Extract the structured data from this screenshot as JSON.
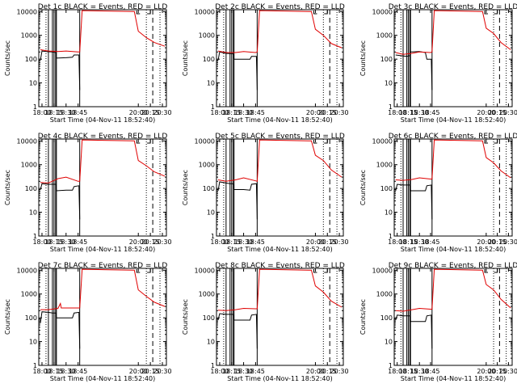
{
  "chart_data": {
    "type": "line",
    "x_unit": "UT time of day (HH:MM) on 04-Nov-11",
    "x_range": [
      "17:56",
      "20:35"
    ],
    "y_scale": "log",
    "ylim": [
      1,
      12000
    ],
    "ylabel": "Counts/sec",
    "xlabel": "Start Time (04-Nov-11 18:52:40)",
    "x_tick_labels": [
      "18:00",
      "18:15",
      "18:30",
      "18:45",
      "20:00",
      "20:15",
      "20:30"
    ],
    "y_tick_labels": [
      "1",
      "10",
      "100",
      "1000",
      "10000"
    ],
    "series_legend": {
      "events": "BLACK = Events",
      "lld": "RED = LLD"
    },
    "colors": {
      "events": "#000000",
      "lld": "#e00000"
    },
    "vlines": {
      "solid": [
        "18:08",
        "18:13",
        "18:15",
        "18:17",
        "18:18",
        "18:47"
      ],
      "dotted": [
        "18:05",
        "20:10",
        "20:27"
      ],
      "dashed": [
        "20:18"
      ]
    },
    "panels": [
      {
        "title": "Det 1c BLACK = Events, RED = LLD",
        "lld": [
          [
            "17:58",
            250
          ],
          [
            "18:08",
            220
          ],
          [
            "18:20",
            210
          ],
          [
            "18:30",
            220
          ],
          [
            "18:45",
            200
          ],
          [
            "18:47",
            200
          ],
          [
            "18:50",
            11000
          ],
          [
            "19:55",
            10000
          ],
          [
            "20:00",
            1500
          ],
          [
            "20:10",
            800
          ],
          [
            "20:20",
            500
          ],
          [
            "20:33",
            350
          ]
        ],
        "events": [
          [
            "17:58",
            90
          ],
          [
            "18:00",
            220
          ],
          [
            "18:05",
            210
          ],
          [
            "18:13",
            200
          ],
          [
            "18:17",
            190
          ],
          [
            "18:18",
            110
          ],
          [
            "18:30",
            115
          ],
          [
            "18:38",
            120
          ],
          [
            "18:40",
            150
          ],
          [
            "18:46",
            150
          ],
          [
            "18:47",
            5
          ]
        ]
      },
      {
        "title": "Det 2c BLACK = Events, RED = LLD",
        "lld": [
          [
            "17:58",
            220
          ],
          [
            "18:08",
            190
          ],
          [
            "18:20",
            190
          ],
          [
            "18:30",
            210
          ],
          [
            "18:45",
            190
          ],
          [
            "18:47",
            200
          ],
          [
            "18:50",
            11000
          ],
          [
            "19:55",
            10000
          ],
          [
            "20:00",
            1800
          ],
          [
            "20:10",
            1000
          ],
          [
            "20:20",
            450
          ],
          [
            "20:33",
            300
          ]
        ],
        "events": [
          [
            "17:58",
            90
          ],
          [
            "18:00",
            200
          ],
          [
            "18:08",
            175
          ],
          [
            "18:13",
            170
          ],
          [
            "18:17",
            170
          ],
          [
            "18:18",
            100
          ],
          [
            "18:30",
            100
          ],
          [
            "18:38",
            100
          ],
          [
            "18:40",
            130
          ],
          [
            "18:46",
            130
          ],
          [
            "18:47",
            5
          ]
        ]
      },
      {
        "title": "Det 3c BLACK = Events, RED = LLD",
        "lld": [
          [
            "17:58",
            190
          ],
          [
            "18:08",
            160
          ],
          [
            "18:20",
            175
          ],
          [
            "18:30",
            200
          ],
          [
            "18:45",
            190
          ],
          [
            "18:47",
            200
          ],
          [
            "18:50",
            11000
          ],
          [
            "19:55",
            10000
          ],
          [
            "20:00",
            2000
          ],
          [
            "20:10",
            1200
          ],
          [
            "20:20",
            500
          ],
          [
            "20:33",
            250
          ]
        ],
        "events": [
          [
            "17:58",
            150
          ],
          [
            "18:05",
            140
          ],
          [
            "18:13",
            130
          ],
          [
            "18:17",
            140
          ],
          [
            "18:18",
            200
          ],
          [
            "18:30",
            210
          ],
          [
            "18:38",
            190
          ],
          [
            "18:40",
            100
          ],
          [
            "18:46",
            100
          ],
          [
            "18:47",
            5
          ]
        ]
      },
      {
        "title": "Det 4c BLACK = Events, RED = LLD",
        "lld": [
          [
            "17:58",
            180
          ],
          [
            "18:08",
            170
          ],
          [
            "18:20",
            260
          ],
          [
            "18:30",
            300
          ],
          [
            "18:45",
            200
          ],
          [
            "18:47",
            200
          ],
          [
            "18:50",
            11000
          ],
          [
            "19:55",
            10000
          ],
          [
            "20:00",
            1500
          ],
          [
            "20:10",
            900
          ],
          [
            "20:20",
            500
          ],
          [
            "20:33",
            330
          ]
        ],
        "events": [
          [
            "17:58",
            90
          ],
          [
            "18:00",
            160
          ],
          [
            "18:08",
            150
          ],
          [
            "18:13",
            150
          ],
          [
            "18:17",
            150
          ],
          [
            "18:18",
            80
          ],
          [
            "18:30",
            85
          ],
          [
            "18:38",
            85
          ],
          [
            "18:40",
            120
          ],
          [
            "18:46",
            130
          ],
          [
            "18:47",
            5
          ]
        ]
      },
      {
        "title": "Det 5c BLACK = Events, RED = LLD",
        "lld": [
          [
            "17:58",
            230
          ],
          [
            "18:08",
            200
          ],
          [
            "18:20",
            230
          ],
          [
            "18:30",
            280
          ],
          [
            "18:45",
            210
          ],
          [
            "18:47",
            200
          ],
          [
            "18:50",
            11000
          ],
          [
            "19:55",
            10000
          ],
          [
            "20:00",
            2500
          ],
          [
            "20:10",
            1500
          ],
          [
            "20:20",
            600
          ],
          [
            "20:33",
            300
          ]
        ],
        "events": [
          [
            "17:58",
            80
          ],
          [
            "18:00",
            190
          ],
          [
            "18:08",
            170
          ],
          [
            "18:13",
            160
          ],
          [
            "18:17",
            160
          ],
          [
            "18:18",
            90
          ],
          [
            "18:30",
            90
          ],
          [
            "18:38",
            85
          ],
          [
            "18:40",
            150
          ],
          [
            "18:46",
            160
          ],
          [
            "18:47",
            5
          ]
        ]
      },
      {
        "title": "Det 6c BLACK = Events, RED = LLD",
        "lld": [
          [
            "17:58",
            230
          ],
          [
            "18:08",
            220
          ],
          [
            "18:20",
            240
          ],
          [
            "18:30",
            280
          ],
          [
            "18:45",
            250
          ],
          [
            "18:47",
            250
          ],
          [
            "18:50",
            11000
          ],
          [
            "19:55",
            10000
          ],
          [
            "20:00",
            2000
          ],
          [
            "20:10",
            1200
          ],
          [
            "20:20",
            550
          ],
          [
            "20:33",
            280
          ]
        ],
        "events": [
          [
            "17:58",
            80
          ],
          [
            "18:00",
            150
          ],
          [
            "18:08",
            140
          ],
          [
            "18:13",
            140
          ],
          [
            "18:17",
            140
          ],
          [
            "18:18",
            80
          ],
          [
            "18:30",
            80
          ],
          [
            "18:38",
            80
          ],
          [
            "18:40",
            130
          ],
          [
            "18:46",
            140
          ],
          [
            "18:47",
            5
          ]
        ]
      },
      {
        "title": "Det 7c BLACK = Events, RED = LLD",
        "lld": [
          [
            "17:58",
            220
          ],
          [
            "18:08",
            220
          ],
          [
            "18:20",
            250
          ],
          [
            "18:23",
            400
          ],
          [
            "18:24",
            260
          ],
          [
            "18:30",
            260
          ],
          [
            "18:45",
            260
          ],
          [
            "18:47",
            260
          ],
          [
            "18:50",
            11000
          ],
          [
            "19:55",
            10000
          ],
          [
            "20:00",
            1500
          ],
          [
            "20:10",
            800
          ],
          [
            "20:20",
            450
          ],
          [
            "20:33",
            300
          ]
        ],
        "events": [
          [
            "17:58",
            60
          ],
          [
            "18:00",
            180
          ],
          [
            "18:08",
            170
          ],
          [
            "18:13",
            160
          ],
          [
            "18:17",
            160
          ],
          [
            "18:18",
            100
          ],
          [
            "18:30",
            100
          ],
          [
            "18:38",
            100
          ],
          [
            "18:40",
            160
          ],
          [
            "18:46",
            170
          ],
          [
            "18:47",
            5
          ]
        ]
      },
      {
        "title": "Det 8c BLACK = Events, RED = LLD",
        "lld": [
          [
            "17:58",
            210
          ],
          [
            "18:08",
            200
          ],
          [
            "18:20",
            220
          ],
          [
            "18:30",
            250
          ],
          [
            "18:45",
            240
          ],
          [
            "18:47",
            240
          ],
          [
            "18:50",
            11000
          ],
          [
            "19:55",
            10000
          ],
          [
            "20:00",
            2200
          ],
          [
            "20:10",
            1200
          ],
          [
            "20:20",
            500
          ],
          [
            "20:33",
            280
          ]
        ],
        "events": [
          [
            "17:58",
            80
          ],
          [
            "18:00",
            150
          ],
          [
            "18:08",
            140
          ],
          [
            "18:13",
            140
          ],
          [
            "18:17",
            140
          ],
          [
            "18:18",
            80
          ],
          [
            "18:30",
            80
          ],
          [
            "18:38",
            80
          ],
          [
            "18:40",
            130
          ],
          [
            "18:46",
            140
          ],
          [
            "18:47",
            5
          ]
        ]
      },
      {
        "title": "Det 9c BLACK = Events, RED = LLD",
        "lld": [
          [
            "17:58",
            200
          ],
          [
            "18:08",
            190
          ],
          [
            "18:20",
            220
          ],
          [
            "18:30",
            250
          ],
          [
            "18:45",
            230
          ],
          [
            "18:47",
            230
          ],
          [
            "18:50",
            11000
          ],
          [
            "19:55",
            10000
          ],
          [
            "20:00",
            2500
          ],
          [
            "20:10",
            1500
          ],
          [
            "20:20",
            600
          ],
          [
            "20:33",
            260
          ]
        ],
        "events": [
          [
            "17:58",
            80
          ],
          [
            "18:00",
            130
          ],
          [
            "18:08",
            120
          ],
          [
            "18:13",
            120
          ],
          [
            "18:17",
            120
          ],
          [
            "18:18",
            70
          ],
          [
            "18:30",
            70
          ],
          [
            "18:38",
            70
          ],
          [
            "18:40",
            120
          ],
          [
            "18:46",
            130
          ],
          [
            "18:47",
            5
          ]
        ]
      }
    ]
  }
}
